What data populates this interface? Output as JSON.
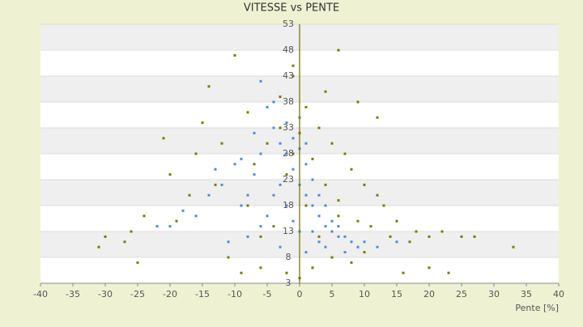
{
  "chart_data": {
    "type": "scatter",
    "title": "VITESSE vs PENTE",
    "x_label": "Pente [%]",
    "xlim": [
      -40,
      40
    ],
    "xticks": [
      -40,
      -35,
      -30,
      -25,
      -20,
      -15,
      -10,
      -5,
      0,
      5,
      10,
      15,
      20,
      25,
      30,
      35,
      40
    ],
    "ylim": [
      3,
      53
    ],
    "yticks": [
      3,
      8,
      13,
      18,
      23,
      28,
      33,
      38,
      43,
      48,
      53
    ],
    "grid": "bands",
    "series": [
      {
        "color": "#4a8fd8",
        "x": [
          -5,
          -4,
          -3,
          -2,
          -1,
          0,
          1,
          2,
          3,
          4,
          5,
          6,
          7,
          8,
          10,
          12,
          -6,
          -7,
          -8,
          -9,
          -10,
          -12,
          -14,
          -16,
          -20,
          -3,
          -2,
          -1,
          0,
          1,
          2,
          3,
          4,
          5,
          6,
          -4,
          -5,
          -6,
          -8,
          -11,
          -6,
          -4,
          0,
          1,
          2,
          3,
          4,
          7,
          9,
          15,
          -2,
          -1,
          0,
          -7,
          -9,
          -13,
          -18,
          -22,
          1,
          -3
        ],
        "values": [
          37,
          33,
          30,
          28,
          25,
          22,
          20,
          18,
          16,
          14,
          13,
          12,
          12,
          11,
          11,
          10,
          28,
          24,
          20,
          18,
          26,
          22,
          20,
          16,
          14,
          22,
          34,
          31,
          29,
          26,
          23,
          20,
          18,
          15,
          14,
          20,
          16,
          14,
          12,
          11,
          42,
          38,
          35,
          30,
          13,
          11,
          10,
          9,
          10,
          11,
          18,
          15,
          13,
          32,
          27,
          25,
          17,
          14,
          9,
          10
        ]
      },
      {
        "color": "#7a7a00",
        "x": [
          -10,
          6,
          -1,
          4,
          -14,
          9,
          12,
          -21,
          -15,
          -8,
          -3,
          -1,
          1,
          3,
          5,
          7,
          8,
          10,
          12,
          13,
          15,
          18,
          20,
          22,
          25,
          27,
          33,
          -31,
          -30,
          -26,
          -24,
          -27,
          -25,
          -19,
          -17,
          -12,
          -11,
          -6,
          -2,
          0,
          2,
          5,
          8,
          10,
          16,
          20,
          23,
          -9,
          -7,
          -5,
          -3,
          -1,
          0,
          2,
          4,
          6,
          9,
          11,
          14,
          17,
          -4,
          -8,
          -13,
          -16,
          -20,
          3,
          6,
          -2,
          1,
          -6
        ],
        "values": [
          47,
          48,
          45,
          40,
          41,
          38,
          35,
          31,
          34,
          36,
          39,
          43,
          37,
          33,
          30,
          28,
          25,
          22,
          20,
          18,
          15,
          13,
          12,
          13,
          12,
          12,
          10,
          10,
          12,
          13,
          16,
          11,
          7,
          15,
          20,
          30,
          8,
          6,
          5,
          4,
          6,
          8,
          7,
          9,
          5,
          6,
          5,
          5,
          26,
          30,
          33,
          28,
          32,
          27,
          22,
          19,
          15,
          14,
          12,
          11,
          14,
          18,
          22,
          28,
          24,
          12,
          16,
          24,
          18,
          12
        ]
      }
    ]
  }
}
